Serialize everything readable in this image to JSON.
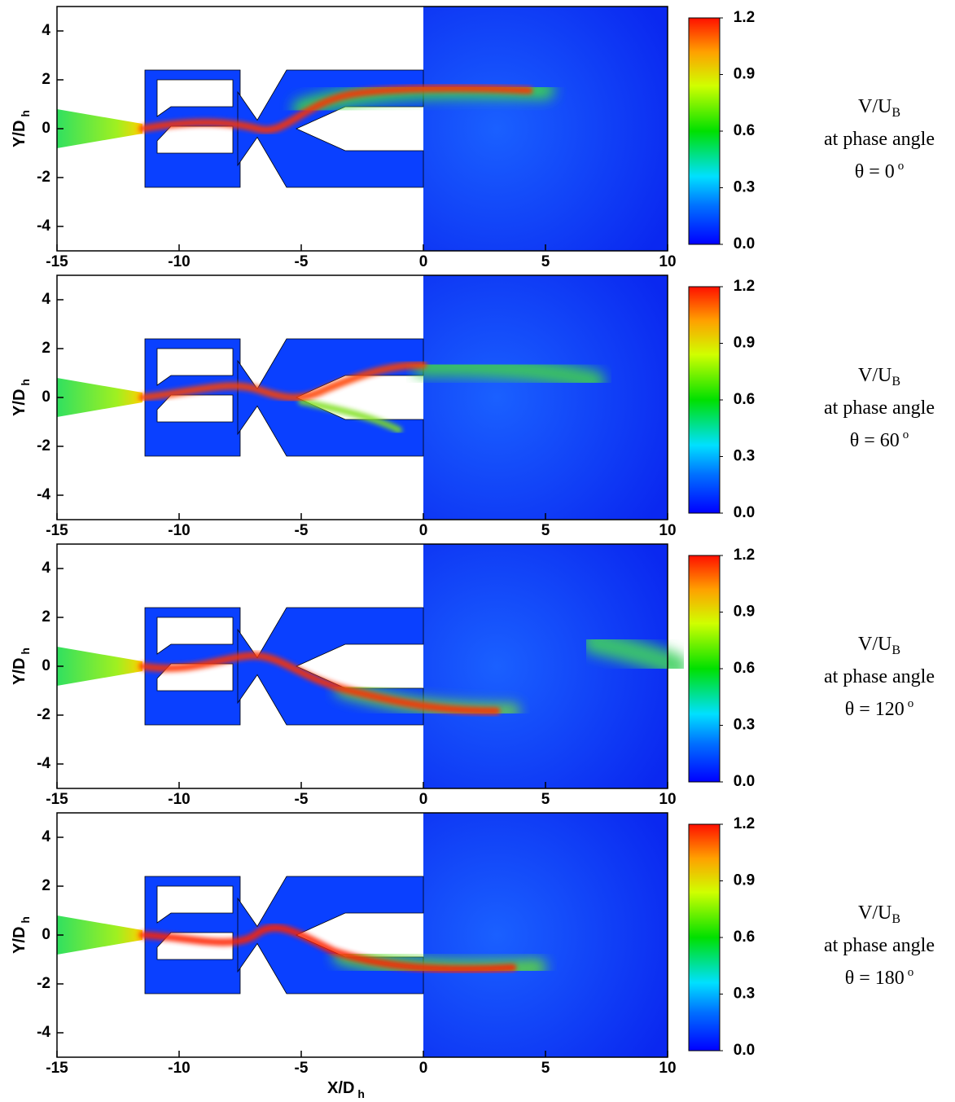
{
  "chart_data": [
    {
      "type": "contour",
      "ylabel": "Y/D",
      "ylabel_sub": "h",
      "xlim": [
        -15,
        10
      ],
      "ylim": [
        -5,
        5
      ],
      "xticks": [
        -15,
        -10,
        -5,
        0,
        5,
        10
      ],
      "yticks": [
        -4,
        -2,
        0,
        2,
        4
      ],
      "colorbar": {
        "lim": [
          0,
          1.2
        ],
        "ticks": [
          {
            "value": 0,
            "label": "0.0"
          },
          0.3,
          0.6,
          0.9,
          1.2
        ]
      },
      "annotation": {
        "quantity": "V/U",
        "quantity_sub": "B",
        "line2": "at phase angle",
        "line3": "θ = 0",
        "line3_sup": "o"
      }
    },
    {
      "type": "contour",
      "ylabel": "Y/D",
      "ylabel_sub": "h",
      "xlim": [
        -15,
        10
      ],
      "ylim": [
        -5,
        5
      ],
      "xticks": [
        -15,
        -10,
        -5,
        0,
        5,
        10
      ],
      "yticks": [
        -4,
        -2,
        0,
        2,
        4
      ],
      "colorbar": {
        "lim": [
          0,
          1.2
        ],
        "ticks": [
          {
            "value": 0,
            "label": "0.0"
          },
          0.3,
          0.6,
          0.9,
          1.2
        ]
      },
      "annotation": {
        "quantity": "V/U",
        "quantity_sub": "B",
        "line2": "at phase angle",
        "line3": "θ = 60",
        "line3_sup": "o"
      }
    },
    {
      "type": "contour",
      "ylabel": "Y/D",
      "ylabel_sub": "h",
      "xlim": [
        -15,
        10
      ],
      "ylim": [
        -5,
        5
      ],
      "xticks": [
        -15,
        -10,
        -5,
        0,
        5,
        10
      ],
      "yticks": [
        -4,
        -2,
        0,
        2,
        4
      ],
      "colorbar": {
        "lim": [
          0,
          1.2
        ],
        "ticks": [
          {
            "value": 0,
            "label": "0.0"
          },
          0.3,
          0.6,
          0.9,
          1.2
        ]
      },
      "annotation": {
        "quantity": "V/U",
        "quantity_sub": "B",
        "line2": "at phase angle",
        "line3": "θ = 120",
        "line3_sup": "o"
      }
    },
    {
      "type": "contour",
      "ylabel": "Y/D",
      "ylabel_sub": "h",
      "xlabel": "X/D",
      "xlabel_sub": "h",
      "xlim": [
        -15,
        10
      ],
      "ylim": [
        -5,
        5
      ],
      "xticks": [
        -15,
        -10,
        -5,
        0,
        5,
        10
      ],
      "yticks": [
        -4,
        -2,
        0,
        2,
        4
      ],
      "colorbar": {
        "lim": [
          0,
          1.2
        ],
        "ticks": [
          {
            "value": 0,
            "label": "0.0"
          },
          0.3,
          0.6,
          0.9,
          1.2
        ]
      },
      "annotation": {
        "quantity": "V/U",
        "quantity_sub": "B",
        "line2": "at phase angle",
        "line3": "θ = 180",
        "line3_sup": "o"
      }
    }
  ]
}
